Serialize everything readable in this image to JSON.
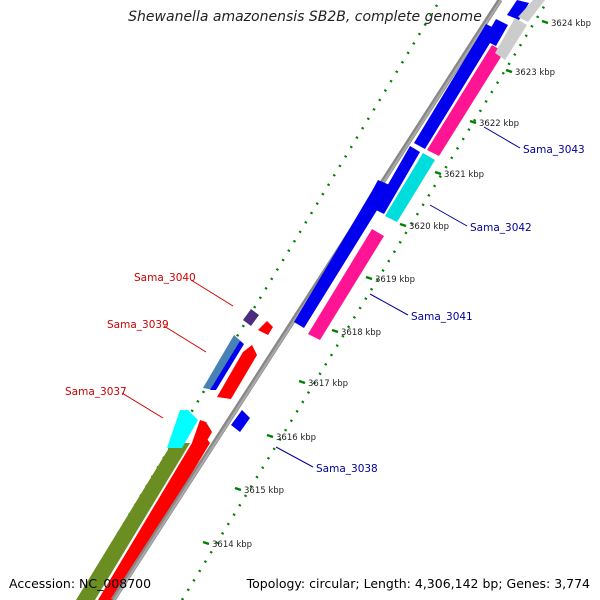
{
  "map": {
    "title": "Shewanella amazonensis SB2B, complete genome",
    "accession": "Accession: NC_008700",
    "summary": "Topology: circular; Length: 4,306,142 bp; Genes: 3,774",
    "ticks": [
      {
        "label": "3614 kbp",
        "kbp": 3614
      },
      {
        "label": "3615 kbp",
        "kbp": 3615
      },
      {
        "label": "3616 kbp",
        "kbp": 3616
      },
      {
        "label": "3617 kbp",
        "kbp": 3617
      },
      {
        "label": "3618 kbp",
        "kbp": 3618
      },
      {
        "label": "3619 kbp",
        "kbp": 3619
      },
      {
        "label": "3620 kbp",
        "kbp": 3620
      },
      {
        "label": "3621 kbp",
        "kbp": 3621
      },
      {
        "label": "3622 kbp",
        "kbp": 3622
      },
      {
        "label": "3623 kbp",
        "kbp": 3623
      },
      {
        "label": "3624 kbp",
        "kbp": 3624
      }
    ],
    "gene_labels": [
      {
        "label": "Sama_3037",
        "strand": "minus",
        "color": "#cc0000"
      },
      {
        "label": "Sama_3039",
        "strand": "minus",
        "color": "#cc0000"
      },
      {
        "label": "Sama_3040",
        "strand": "minus",
        "color": "#cc0000"
      },
      {
        "label": "Sama_3038",
        "strand": "plus",
        "color": "#000099"
      },
      {
        "label": "Sama_3041",
        "strand": "plus",
        "color": "#000099"
      },
      {
        "label": "Sama_3042",
        "strand": "plus",
        "color": "#000099"
      },
      {
        "label": "Sama_3043",
        "strand": "plus",
        "color": "#000099"
      }
    ],
    "colors": {
      "backbone": "#888888",
      "cds": "#0000ee",
      "gene": "#ff1493",
      "trna_like": "#00dddd",
      "olive": "#6b8e23",
      "red": "#ff0000",
      "steelblue": "#4682b4",
      "purple": "#4b2d7f",
      "gray": "#cccccc",
      "gc_dots": "#008000"
    }
  }
}
